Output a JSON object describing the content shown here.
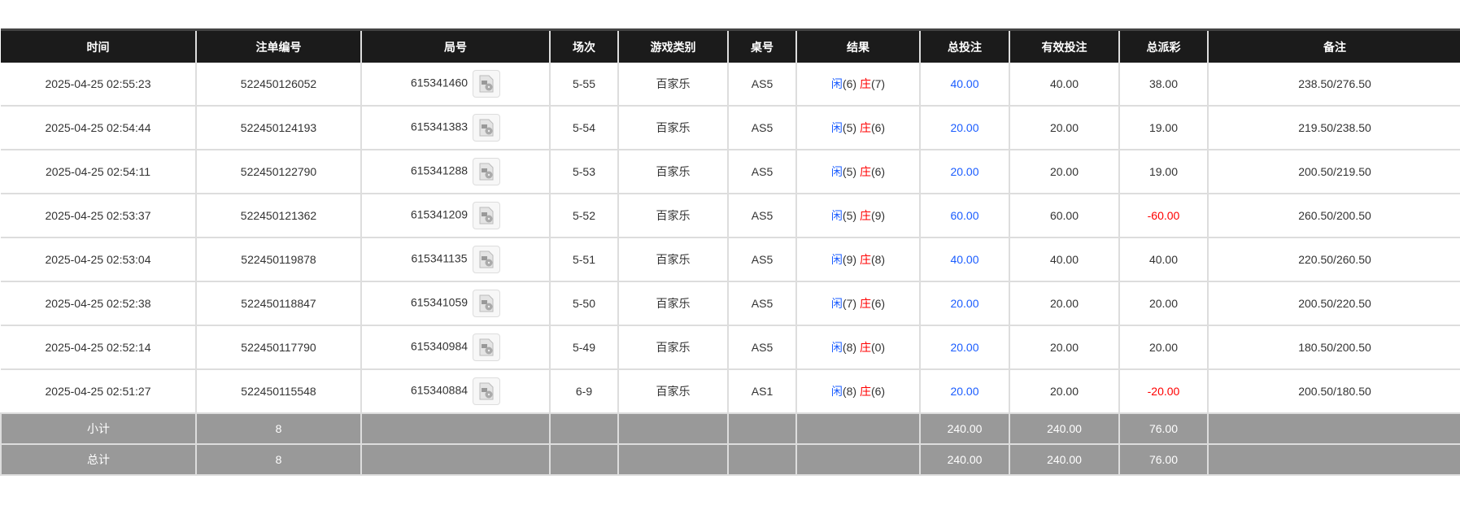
{
  "columns": [
    "时间",
    "注单编号",
    "局号",
    "场次",
    "游戏类别",
    "桌号",
    "结果",
    "总投注",
    "有效投注",
    "总派彩",
    "备注"
  ],
  "colors": {
    "header_bg": "#1b1b1b",
    "summary_bg": "#999999",
    "blue": "#1a5cff",
    "red": "#ff0000"
  },
  "result_labels": {
    "player": "闲",
    "banker": "庄"
  },
  "rows": [
    {
      "time": "2025-04-25 02:55:23",
      "bet_id": "522450126052",
      "round": "615341460",
      "session": "5-55",
      "game": "百家乐",
      "table": "AS5",
      "player": "(6)",
      "banker": "(7)",
      "total_bet": "40.00",
      "valid_bet": "40.00",
      "payout": "38.00",
      "payout_negative": false,
      "note": "238.50/276.50"
    },
    {
      "time": "2025-04-25 02:54:44",
      "bet_id": "522450124193",
      "round": "615341383",
      "session": "5-54",
      "game": "百家乐",
      "table": "AS5",
      "player": "(5)",
      "banker": "(6)",
      "total_bet": "20.00",
      "valid_bet": "20.00",
      "payout": "19.00",
      "payout_negative": false,
      "note": "219.50/238.50"
    },
    {
      "time": "2025-04-25 02:54:11",
      "bet_id": "522450122790",
      "round": "615341288",
      "session": "5-53",
      "game": "百家乐",
      "table": "AS5",
      "player": "(5)",
      "banker": "(6)",
      "total_bet": "20.00",
      "valid_bet": "20.00",
      "payout": "19.00",
      "payout_negative": false,
      "note": "200.50/219.50"
    },
    {
      "time": "2025-04-25 02:53:37",
      "bet_id": "522450121362",
      "round": "615341209",
      "session": "5-52",
      "game": "百家乐",
      "table": "AS5",
      "player": "(5)",
      "banker": "(9)",
      "total_bet": "60.00",
      "valid_bet": "60.00",
      "payout": "-60.00",
      "payout_negative": true,
      "note": "260.50/200.50"
    },
    {
      "time": "2025-04-25 02:53:04",
      "bet_id": "522450119878",
      "round": "615341135",
      "session": "5-51",
      "game": "百家乐",
      "table": "AS5",
      "player": "(9)",
      "banker": "(8)",
      "total_bet": "40.00",
      "valid_bet": "40.00",
      "payout": "40.00",
      "payout_negative": false,
      "note": "220.50/260.50"
    },
    {
      "time": "2025-04-25 02:52:38",
      "bet_id": "522450118847",
      "round": "615341059",
      "session": "5-50",
      "game": "百家乐",
      "table": "AS5",
      "player": "(7)",
      "banker": "(6)",
      "total_bet": "20.00",
      "valid_bet": "20.00",
      "payout": "20.00",
      "payout_negative": false,
      "note": "200.50/220.50"
    },
    {
      "time": "2025-04-25 02:52:14",
      "bet_id": "522450117790",
      "round": "615340984",
      "session": "5-49",
      "game": "百家乐",
      "table": "AS5",
      "player": "(8)",
      "banker": "(0)",
      "total_bet": "20.00",
      "valid_bet": "20.00",
      "payout": "20.00",
      "payout_negative": false,
      "note": "180.50/200.50"
    },
    {
      "time": "2025-04-25 02:51:27",
      "bet_id": "522450115548",
      "round": "615340884",
      "session": "6-9",
      "game": "百家乐",
      "table": "AS1",
      "player": "(8)",
      "banker": "(6)",
      "total_bet": "20.00",
      "valid_bet": "20.00",
      "payout": "-20.00",
      "payout_negative": true,
      "note": "200.50/180.50"
    }
  ],
  "summary": [
    {
      "label": "小计",
      "count": "8",
      "total_bet": "240.00",
      "valid_bet": "240.00",
      "payout": "76.00"
    },
    {
      "label": "总计",
      "count": "8",
      "total_bet": "240.00",
      "valid_bet": "240.00",
      "payout": "76.00"
    }
  ]
}
